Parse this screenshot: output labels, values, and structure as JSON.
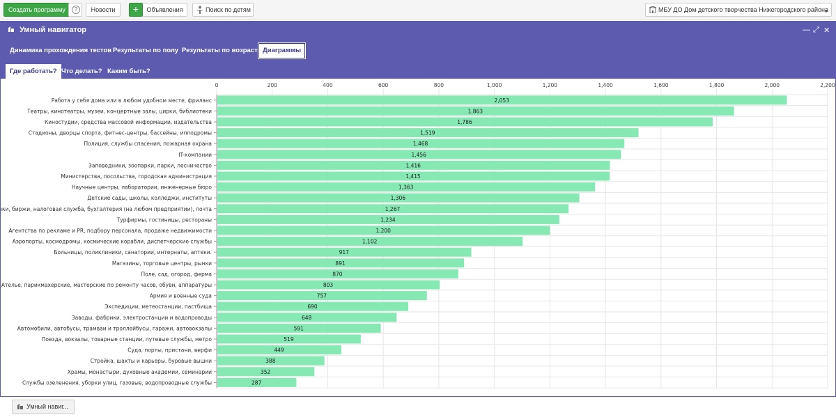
{
  "topbar": {
    "create_label": "Создать программу",
    "help_symbol": "?",
    "news_label": "Новости",
    "plus_symbol": "+",
    "ads_label": "Объявления",
    "search_label": "Поиск по детям",
    "org_label": "МБУ ДО Дом детского творчества Нижегородского района"
  },
  "panel": {
    "title": "Умный навигатор",
    "tabs": [
      "Динамика прохождения тестов",
      "Результаты по полу",
      "Результаты по возрасту",
      "Диаграммы"
    ],
    "subtabs": [
      "Где работать?",
      "Что делать?",
      "Каким быть?"
    ],
    "active_tab": "Диаграммы",
    "active_subtab": "Где работать?"
  },
  "footer": {
    "taskbar_label": "Умный навиг..."
  },
  "colors": {
    "bar": "#86e8b3",
    "header": "#5c5bb0",
    "accent_green": "#3ea647"
  },
  "chart_data": {
    "type": "bar",
    "orientation": "horizontal",
    "xlim": [
      0,
      2200
    ],
    "ticks": [
      0,
      200,
      400,
      600,
      800,
      1000,
      1200,
      1400,
      1600,
      1800,
      2000,
      2200
    ],
    "tick_labels": [
      "0",
      "200",
      "400",
      "600",
      "800",
      "1,000",
      "1,200",
      "1,400",
      "1,600",
      "1,800",
      "2,000",
      "2,200"
    ],
    "grid": true,
    "categories": [
      "Работа у себя дома или в любом удобном месте, фриланс",
      "Театры, кинотеатры, музеи, концертные залы, цирки, библиотеки",
      "Киностудии, средства массовой информации, издательства",
      "Стадионы, дворцы спорта, фитнес-центры, бассейны, ипподромы",
      "Полиция, службы спасения, пожарная охрана",
      "IT-компании",
      "Заповедники, зоопарки, парки, лесничество",
      "Министерства, посольства, городская администрация",
      "Научные центры, лаборатории, инженерные бюро",
      "Детские сады, школы, колледжи, институты",
      "Банки, биржи, налоговая служба, бухгалтерия (на любом предприятии), почта",
      "Турфирмы, гостиницы, рестораны",
      "Агентства по рекламе и PR, подбору персонала, продаже недвижимости",
      "Аэропорты, космодромы, космические корабли, диспетчерские службы",
      "Больницы, поликлиники, санатории, интернаты, аптеки.",
      "Магазины, торговые центры, рынки",
      "Поле, сад, огород, ферма",
      "Ателье, парикмахерские, мастерские по ремонту часов, обуви, аппаратуры",
      "Армия и военные суда",
      "Экспедиции, метеостанции, пастбища",
      "Заводы, фабрики, электростанции и водопроводы",
      "Автомобили, автобусы, трамваи и троллейбусы, гаражи, автовокзалы",
      "Поезда, вокзалы, товарные станции, путевые службы, метро",
      "Суда, порты, пристани, верфи",
      "Стройка, шахты и карьеры, буровые вышки",
      "Храмы, монастыри, духовные академии, семинарии",
      "Службы озеленения, уборки улиц, газовые, водопроводные службы"
    ],
    "values": [
      2053,
      1863,
      1786,
      1519,
      1468,
      1456,
      1416,
      1415,
      1363,
      1306,
      1267,
      1234,
      1200,
      1102,
      917,
      891,
      870,
      803,
      757,
      690,
      648,
      591,
      519,
      449,
      388,
      352,
      287
    ],
    "value_labels": [
      "2,053",
      "1,863",
      "1,786",
      "1,519",
      "1,468",
      "1,456",
      "1,416",
      "1,415",
      "1,363",
      "1,306",
      "1,267",
      "1,234",
      "1,200",
      "1,102",
      "917",
      "891",
      "870",
      "803",
      "757",
      "690",
      "648",
      "591",
      "519",
      "449",
      "388",
      "352",
      "287"
    ]
  }
}
